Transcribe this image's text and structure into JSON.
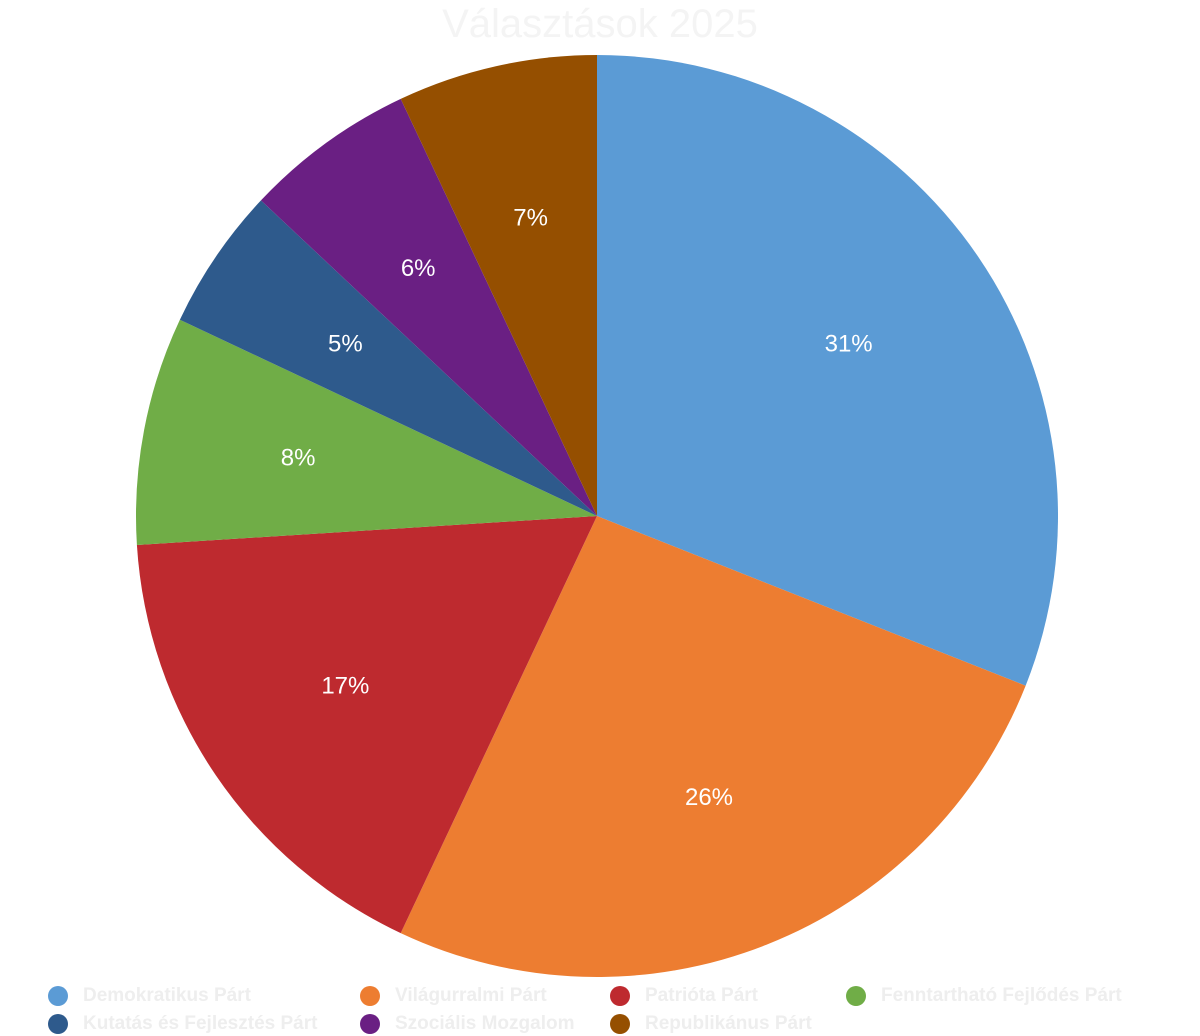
{
  "chart_data": {
    "type": "pie",
    "title": "Választások 2025",
    "series": [
      {
        "name": "Demokratikus Párt",
        "value": 31,
        "label": "31%",
        "color": "#5b9bd5"
      },
      {
        "name": "Világurralmi Párt",
        "value": 26,
        "label": "26%",
        "color": "#ed7d31"
      },
      {
        "name": "Patrióta Párt",
        "value": 17,
        "label": "17%",
        "color": "#be2a2f"
      },
      {
        "name": "Fenntartható Fejlődés Párt",
        "value": 8,
        "label": "8%",
        "color": "#70ad47"
      },
      {
        "name": "Kutatás és Fejlesztés Párt",
        "value": 5,
        "label": "5%",
        "color": "#2e5a8c"
      },
      {
        "name": "Szociális Mozgalom",
        "value": 6,
        "label": "6%",
        "color": "#6a1f83"
      },
      {
        "name": "Republikánus Párt",
        "value": 7,
        "label": "7%",
        "color": "#954f00"
      }
    ],
    "start_angle": "12 o'clock",
    "direction": "clockwise",
    "legend_position": "bottom"
  }
}
